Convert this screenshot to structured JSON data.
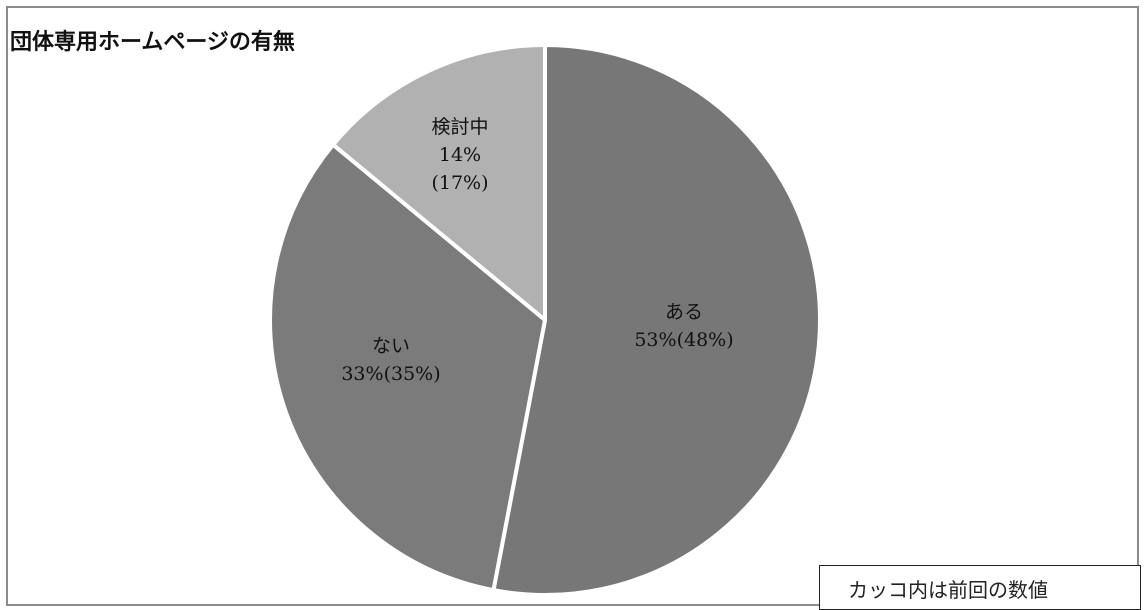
{
  "chart_data": {
    "type": "pie",
    "title": "団体専用ホームページの有無",
    "slices": [
      {
        "name": "ある",
        "value": 53,
        "previous": 48,
        "label_lines": [
          "ある",
          "53%(48%)"
        ],
        "color": "#777777"
      },
      {
        "name": "ない",
        "value": 33,
        "previous": 35,
        "label_lines": [
          "ない",
          "33%(35%)"
        ],
        "color": "#7b7b7b"
      },
      {
        "name": "検討中",
        "value": 14,
        "previous": 17,
        "label_lines": [
          "検討中",
          "14%",
          "(17%)"
        ],
        "color": "#b1b1b1"
      }
    ],
    "start": "12 o'clock",
    "direction": "clockwise",
    "note": "カッコ内は前回の数値",
    "slice_border_color": "#ffffff",
    "frame_color": "#8c8c8c"
  }
}
